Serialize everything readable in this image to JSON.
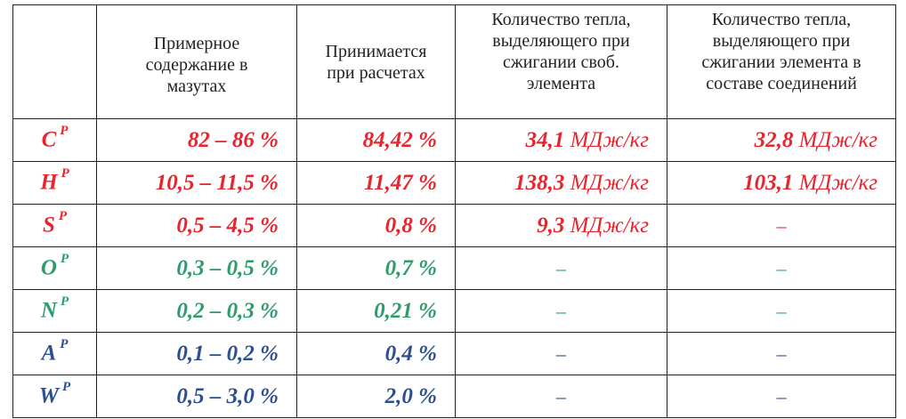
{
  "table": {
    "headers": [
      "",
      "Примерное\nсодержание в\nмазутах",
      "Принимается\nпри расчетах",
      "Количество тепла,\nвыделяющего при\nсжигании своб.\nэлемента",
      "Количество тепла,\nвыделяющего при\nсжигании элемента в\nсоставе соединений"
    ],
    "rows": [
      {
        "element": "C",
        "sup": "Р",
        "color": "#e8242f",
        "content": "82 – 86 %",
        "accepted": "84,42 %",
        "heat_free_value": "34,1",
        "heat_free_unit": " МДж/кг",
        "heat_comp_value": "32,8",
        "heat_comp_unit": " МДж/кг"
      },
      {
        "element": "H",
        "sup": "Р",
        "color": "#e8242f",
        "content": "10,5 – 11,5 %",
        "accepted": "11,47 %",
        "heat_free_value": "138,3",
        "heat_free_unit": " МДж/кг",
        "heat_comp_value": "103,1",
        "heat_comp_unit": " МДж/кг"
      },
      {
        "element": "S",
        "sup": "Р",
        "color": "#e8242f",
        "content": "0,5 – 4,5 %",
        "accepted": "0,8 %",
        "heat_free_value": "9,3",
        "heat_free_unit": " МДж/кг",
        "heat_comp_dash": "–"
      },
      {
        "element": "O",
        "sup": "Р",
        "color": "#2e9c6a",
        "content": "0,3 – 0,5 %",
        "accepted": "0,7 %",
        "heat_free_dash": "–",
        "heat_comp_dash": "–"
      },
      {
        "element": "N",
        "sup": "Р",
        "color": "#2e9c6a",
        "content": "0,2 – 0,3 %",
        "accepted": "0,21 %",
        "heat_free_dash": "–",
        "heat_comp_dash": "–"
      },
      {
        "element": "A",
        "sup": "Р",
        "color": "#2c4f8f",
        "content": "0,1 – 0,2 %",
        "accepted": "0,4 %",
        "heat_free_dash": "–",
        "heat_comp_dash": "–"
      },
      {
        "element": "W",
        "sup": "Р",
        "color": "#2c4f8f",
        "content": "0,5 – 3,0 %",
        "accepted": "2,0 %",
        "heat_free_dash": "–",
        "heat_comp_dash": "–"
      }
    ]
  }
}
